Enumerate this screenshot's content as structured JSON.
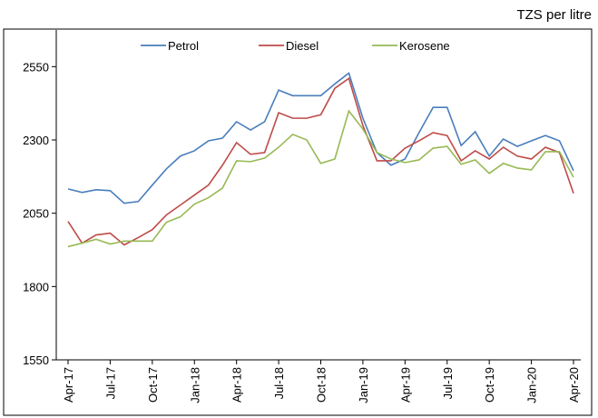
{
  "chart_data": {
    "type": "line",
    "unit_label": "TZS per litre",
    "categories": [
      "Apr-17",
      null,
      null,
      "Jul-17",
      null,
      null,
      "Oct-17",
      null,
      null,
      "Jan-18",
      null,
      null,
      "Apr-18",
      null,
      null,
      "Jul-18",
      null,
      null,
      "Oct-18",
      null,
      null,
      "Jan-19",
      null,
      null,
      "Apr-19",
      null,
      null,
      "Jul-19",
      null,
      null,
      "Oct-19",
      null,
      null,
      "Jan-20",
      null,
      null,
      "Apr-20"
    ],
    "series": [
      {
        "name": "Petrol",
        "color": "#4a7ebb",
        "values": [
          2133,
          2121,
          2130,
          2127,
          2084,
          2090,
          2146,
          2201,
          2245,
          2263,
          2297,
          2306,
          2362,
          2334,
          2362,
          2470,
          2451,
          2451,
          2451,
          2491,
          2528,
          2374,
          2257,
          2214,
          2235,
          2325,
          2411,
          2411,
          2281,
          2328,
          2245,
          2303,
          2278,
          2297,
          2315,
          2297,
          2195
        ]
      },
      {
        "name": "Diesel",
        "color": "#be4b48",
        "values": [
          2022,
          1948,
          1976,
          1982,
          1942,
          1967,
          1994,
          2044,
          2078,
          2112,
          2146,
          2214,
          2291,
          2251,
          2257,
          2393,
          2374,
          2374,
          2386,
          2476,
          2510,
          2349,
          2229,
          2229,
          2272,
          2297,
          2325,
          2315,
          2229,
          2263,
          2235,
          2275,
          2245,
          2235,
          2275,
          2257,
          2118
        ]
      },
      {
        "name": "Kerosene",
        "color": "#98b954",
        "values": [
          1936,
          1948,
          1961,
          1945,
          1955,
          1955,
          1955,
          2019,
          2038,
          2081,
          2103,
          2136,
          2229,
          2226,
          2238,
          2275,
          2319,
          2300,
          2220,
          2235,
          2399,
          2337,
          2257,
          2235,
          2223,
          2232,
          2272,
          2278,
          2217,
          2232,
          2186,
          2220,
          2204,
          2198,
          2260,
          2260,
          2173
        ]
      }
    ],
    "ylim": [
      1550,
      2675
    ],
    "yticks": [
      1550,
      1800,
      2050,
      2300,
      2550
    ],
    "grid": false,
    "legend": "top"
  }
}
